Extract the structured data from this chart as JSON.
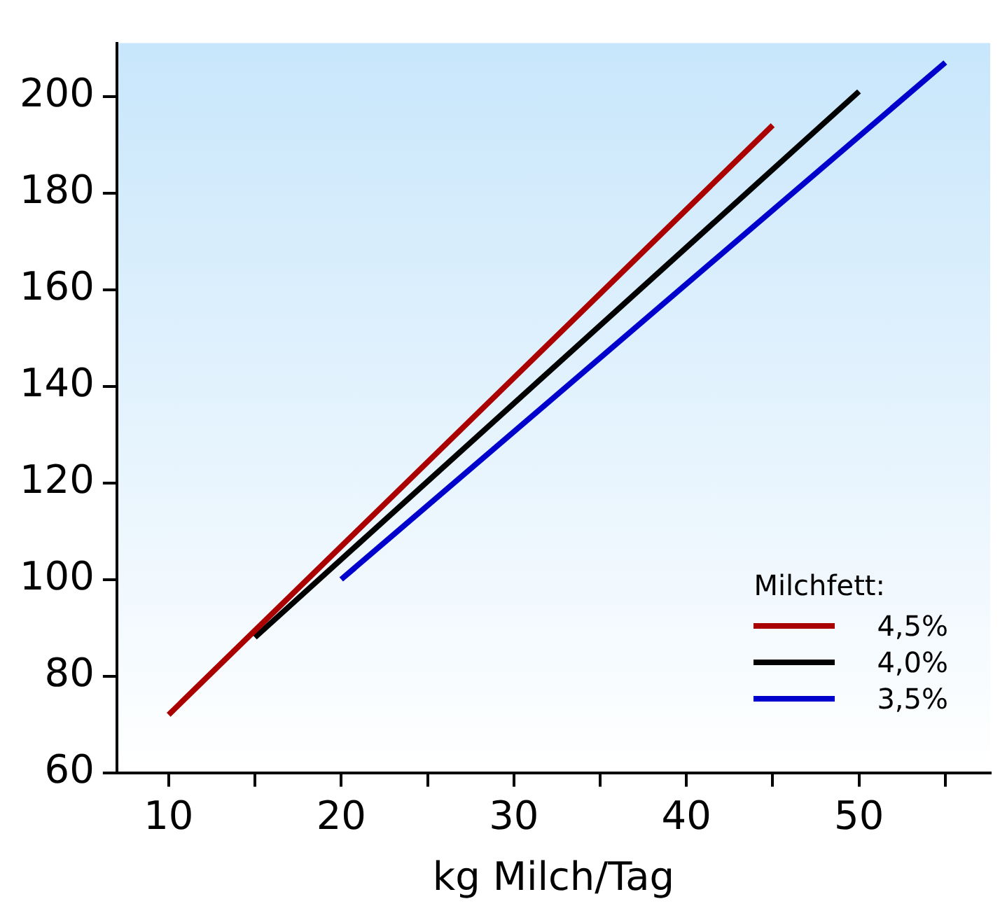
{
  "chart_data": {
    "type": "line",
    "xlabel": "kg Milch/Tag",
    "legend_title": "Milchfett:",
    "xlim": [
      7,
      57.6
    ],
    "ylim": [
      60,
      211
    ],
    "xticks": [
      10,
      {
        "value": 15,
        "label": null
      },
      20,
      {
        "value": 25,
        "label": null
      },
      30,
      {
        "value": 35,
        "label": null
      },
      40,
      {
        "value": 45,
        "label": null
      },
      50,
      {
        "value": 55,
        "label": null
      }
    ],
    "yticks": [
      60,
      80,
      100,
      120,
      140,
      160,
      180,
      200
    ],
    "series": [
      {
        "name": "4,5%",
        "color": "#aa0000",
        "x": [
          10,
          45
        ],
        "values": [
          72,
          194
        ]
      },
      {
        "name": "4,0%",
        "color": "#000000",
        "x": [
          15,
          50
        ],
        "values": [
          88,
          201
        ]
      },
      {
        "name": "3,5%",
        "color": "#0000cc",
        "x": [
          20,
          55
        ],
        "values": [
          100,
          207
        ]
      }
    ],
    "grid": false,
    "legend": "bottom right",
    "marker": "none",
    "line_style": "solid"
  }
}
